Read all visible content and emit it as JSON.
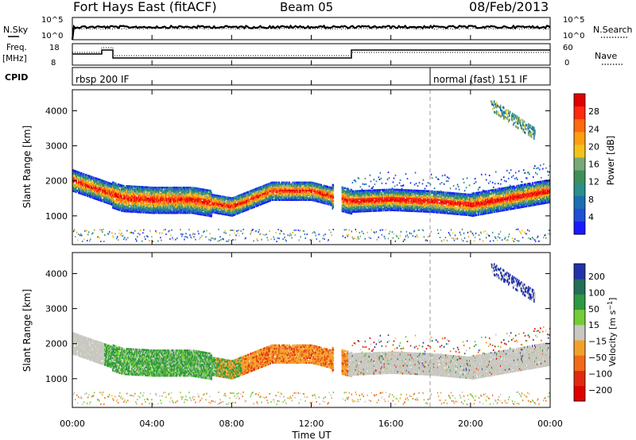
{
  "header": {
    "station": "Fort Hays East (fitACF)",
    "beam": "Beam 05",
    "date": "08/Feb/2013"
  },
  "top_panels": {
    "nsky": {
      "left_label": "N.Sky",
      "left_ticks": [
        "10^5",
        "10^0"
      ],
      "right_label": "N.Search",
      "right_ticks": [
        "10^5",
        "10^0"
      ]
    },
    "freq": {
      "left_label_1": "Freq.",
      "left_label_2": "[MHz]",
      "left_ticks": [
        "18",
        "8"
      ],
      "right_label": "Nave",
      "right_ticks": [
        "60",
        "0"
      ]
    },
    "cpid": {
      "label": "CPID",
      "segments": [
        "rbsp 200 IF",
        "normal (fast) 151 IF"
      ]
    }
  },
  "chart_data": [
    {
      "type": "heatmap",
      "title": "",
      "xlabel": "Time UT",
      "ylabel": "Slant Range [km]",
      "x_ticks": [
        "00:00",
        "04:00",
        "08:00",
        "12:00",
        "16:00",
        "20:00",
        "00:00"
      ],
      "xlim_hours": [
        0,
        24
      ],
      "y_ticks": [
        1000,
        2000,
        3000,
        4000
      ],
      "ylim": [
        180,
        4600
      ],
      "colorbar": {
        "label": "Power [dB]",
        "ticks": [
          4,
          8,
          12,
          16,
          20,
          24,
          28
        ],
        "range": [
          0,
          32
        ],
        "colors": [
          "#1a1aff",
          "#1b5fb8",
          "#1f8f87",
          "#3f8f5a",
          "#7fa07a",
          "#f2c21b",
          "#ff9f10",
          "#ff6a10",
          "#ff2a10",
          "#e20000"
        ]
      },
      "approx_echo_region_center_km": [
        {
          "hour": 0.0,
          "km": 2000
        },
        {
          "hour": 2.5,
          "km": 1500
        },
        {
          "hour": 4.0,
          "km": 1450
        },
        {
          "hour": 6.0,
          "km": 1450
        },
        {
          "hour": 8.0,
          "km": 1250
        },
        {
          "hour": 10.0,
          "km": 1700
        },
        {
          "hour": 12.0,
          "km": 1700
        },
        {
          "hour": 14.0,
          "km": 1400
        },
        {
          "hour": 16.0,
          "km": 1450
        },
        {
          "hour": 18.0,
          "km": 1400
        },
        {
          "hour": 20.0,
          "km": 1300
        },
        {
          "hour": 24.0,
          "km": 1700
        }
      ]
    },
    {
      "type": "heatmap",
      "title": "",
      "xlabel": "Time UT",
      "ylabel": "Slant Range [km]",
      "x_ticks": [
        "00:00",
        "04:00",
        "08:00",
        "12:00",
        "16:00",
        "20:00",
        "00:00"
      ],
      "xlim_hours": [
        0,
        24
      ],
      "y_ticks": [
        1000,
        2000,
        3000,
        4000
      ],
      "ylim": [
        180,
        4600
      ],
      "colorbar": {
        "label": "Velocity [m s^-1]",
        "ticks": [
          200,
          100,
          50,
          15,
          -15,
          -50,
          -100,
          -200
        ],
        "colors": [
          "#2233aa",
          "#2d7a4a",
          "#3fa23a",
          "#72d03a",
          "#c8c8c0",
          "#f3a02a",
          "#f06a1a",
          "#e22a10",
          "#e00000"
        ]
      }
    }
  ]
}
